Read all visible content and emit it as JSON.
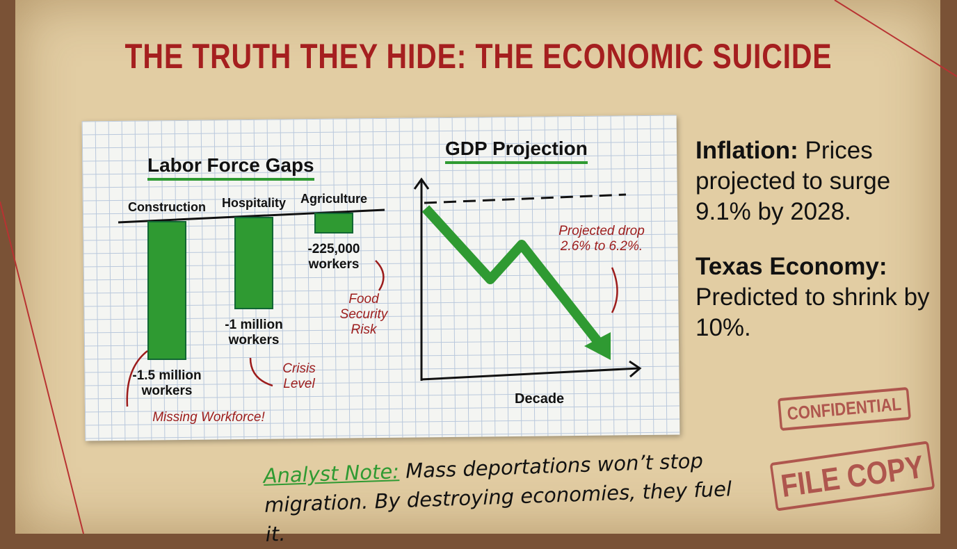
{
  "header": {
    "title": "THE TRUTH THEY HIDE: THE ECONOMIC SUICIDE"
  },
  "chart_data": [
    {
      "type": "bar",
      "title": "Labor Force Gaps",
      "categories": [
        "Construction",
        "Hospitality",
        "Agriculture"
      ],
      "values": [
        -1500000,
        -1000000,
        -225000
      ],
      "value_labels": [
        "-1.5 million workers",
        "-1 million workers",
        "-225,000 workers"
      ],
      "color": "#2f9a32",
      "annotations": [
        "Missing Workforce!",
        "Crisis Level",
        "Food Security Risk"
      ]
    },
    {
      "type": "line",
      "title": "GDP Projection",
      "x_label": "Decade",
      "annotation": "Projected drop 2.6% to 6.2%.",
      "color": "#2f9a32"
    }
  ],
  "facts": [
    {
      "label": "Inflation:",
      "text": "Prices projected to surge 9.1% by 2028."
    },
    {
      "label": "Texas Economy:",
      "text": "Predicted to shrink by 10%."
    }
  ],
  "stamps": [
    "CONFIDENTIAL",
    "FILE COPY"
  ],
  "note": {
    "label": "Analyst Note:",
    "text": "Mass deportations won’t stop migration. By destroying economies, they fuel it."
  }
}
